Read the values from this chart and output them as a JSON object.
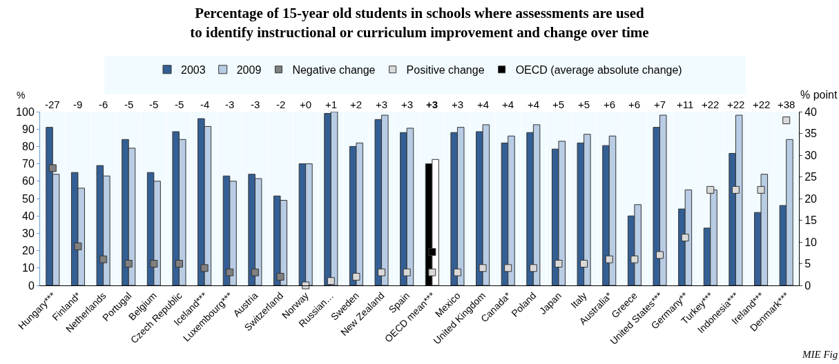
{
  "chart_data": {
    "type": "bar",
    "title": "Percentage of 15-year old students in schools where assessments are used to identify instructional or curriculum improvement and change over time",
    "ylabel": "%",
    "y2label": "% point",
    "categories": [
      "Hungary***",
      "Finland*",
      "Netherlands",
      "Portugal",
      "Belgium",
      "Czech Republic",
      "Iceland***",
      "Luxembourg***",
      "Austria",
      "Switzerland",
      "Norway",
      "Russian…",
      "Sweden",
      "New Zealand",
      "Spain",
      "OECD mean***",
      "Mexico",
      "United Kingdom",
      "Canada*",
      "Poland",
      "Japan",
      "Italy",
      "Australia*",
      "Greece",
      "United States***",
      "Germany**",
      "Turkey***",
      "Indonesia***",
      "Ireland***",
      "Denmark***"
    ],
    "series": [
      {
        "name": "2003",
        "color": "#345f94",
        "colors": [
          "#345f94",
          "#345f94",
          "#345f94",
          "#345f94",
          "#345f94",
          "#345f94",
          "#345f94",
          "#345f94",
          "#345f94",
          "#345f94",
          "#345f94",
          "#345f94",
          "#345f94",
          "#345f94",
          "#345f94",
          "#000000",
          "#345f94",
          "#345f94",
          "#345f94",
          "#345f94",
          "#345f94",
          "#345f94",
          "#345f94",
          "#345f94",
          "#345f94",
          "#345f94",
          "#345f94",
          "#345f94",
          "#345f94",
          "#345f94"
        ],
        "values": [
          91,
          65,
          69,
          84,
          65,
          88.5,
          96,
          63,
          64,
          51.5,
          70,
          99,
          80,
          95.5,
          88,
          70,
          88,
          88.5,
          82,
          88,
          78.5,
          82,
          80.5,
          40,
          91,
          44,
          33,
          76,
          42,
          46
        ]
      },
      {
        "name": "2009",
        "color": "#b8cce4",
        "colors": [
          "#b8cce4",
          "#b8cce4",
          "#b8cce4",
          "#b8cce4",
          "#b8cce4",
          "#b8cce4",
          "#b8cce4",
          "#b8cce4",
          "#b8cce4",
          "#b8cce4",
          "#b8cce4",
          "#b8cce4",
          "#b8cce4",
          "#b8cce4",
          "#b8cce4",
          "#ffffff",
          "#b8cce4",
          "#b8cce4",
          "#b8cce4",
          "#b8cce4",
          "#b8cce4",
          "#b8cce4",
          "#b8cce4",
          "#b8cce4",
          "#b8cce4",
          "#b8cce4",
          "#b8cce4",
          "#b8cce4",
          "#b8cce4",
          "#b8cce4"
        ],
        "values": [
          64,
          56,
          63,
          79,
          60,
          84,
          91.5,
          60,
          61.5,
          49,
          70,
          100,
          82,
          98,
          90.5,
          72.5,
          91,
          92.5,
          86,
          92.5,
          83,
          87,
          86,
          46.5,
          98,
          55,
          55,
          98,
          64,
          84
        ]
      },
      {
        "name": "Negative change",
        "type": "scatter",
        "axis": "y2",
        "color": "#808080",
        "values": [
          27,
          9,
          6,
          5,
          5,
          5,
          4,
          3,
          3,
          2,
          null,
          null,
          null,
          null,
          null,
          null,
          null,
          null,
          null,
          null,
          null,
          null,
          null,
          null,
          null,
          null,
          null,
          null,
          null,
          null
        ]
      },
      {
        "name": "Positive change",
        "type": "scatter",
        "axis": "y2",
        "color": "#d9d9d9",
        "values": [
          null,
          null,
          null,
          null,
          null,
          null,
          null,
          null,
          null,
          null,
          0,
          1,
          2,
          3,
          3,
          3,
          3,
          4,
          4,
          4,
          5,
          5,
          6,
          6,
          7,
          11,
          22,
          22,
          22,
          38
        ]
      },
      {
        "name": "OECD (average absolute change)",
        "type": "scatter",
        "axis": "y2",
        "color": "#000000",
        "values": [
          null,
          null,
          null,
          null,
          null,
          null,
          null,
          null,
          null,
          null,
          null,
          null,
          null,
          null,
          null,
          7.7,
          null,
          null,
          null,
          null,
          null,
          null,
          null,
          null,
          null,
          null,
          null,
          null,
          null,
          null
        ]
      }
    ],
    "ylim": [
      0,
      100
    ],
    "yticks": [
      0,
      10,
      20,
      30,
      40,
      50,
      60,
      70,
      80,
      90,
      100
    ],
    "y2lim": [
      0,
      40
    ],
    "y2ticks": [
      0,
      5,
      10,
      15,
      20,
      25,
      30,
      35,
      40
    ],
    "legend": "top",
    "marker": "square",
    "annotations": [
      "-27",
      "-9",
      "-6",
      "-5",
      "-5",
      "-5",
      "-4",
      "-3",
      "-3",
      "-2",
      "+0",
      "+1",
      "+2",
      "+3",
      "+3",
      "+3",
      "+3",
      "+4",
      "+4",
      "+4",
      "+5",
      "+5",
      "+6",
      "+6",
      "+7",
      "+11",
      "+22",
      "+22",
      "+22",
      "+38",
      "MIE Fig"
    ]
  }
}
